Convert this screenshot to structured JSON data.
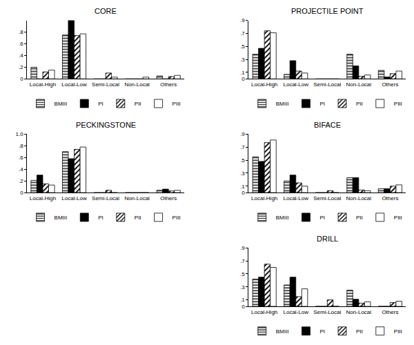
{
  "chart_data": [
    {
      "type": "bar",
      "title": "CORE",
      "categories": [
        "Local-High",
        "Local-Low",
        "Semi-Local",
        "Non-Local",
        "Others"
      ],
      "series": [
        {
          "name": "BMIII",
          "marker": "horizontal",
          "values": [
            0.2,
            0.75,
            0,
            0,
            0.05
          ]
        },
        {
          "name": "PI",
          "marker": "solid",
          "values": [
            0,
            1.0,
            0,
            0,
            0
          ]
        },
        {
          "name": "PII",
          "marker": "diagonal",
          "values": [
            0.12,
            0.74,
            0.1,
            0,
            0.04
          ]
        },
        {
          "name": "PIII",
          "marker": "hollow",
          "values": [
            0.15,
            0.77,
            0.03,
            0.03,
            0.06
          ]
        }
      ],
      "ylim": [
        0,
        1.0
      ],
      "yticks": [
        0,
        {
          "value": 0.2,
          "label": ".2"
        },
        {
          "value": 0.4,
          "label": ".4"
        },
        {
          "value": 0.6,
          "label": ".6"
        },
        {
          "value": 0.8,
          "label": ".8"
        }
      ],
      "grid": false,
      "legend": "bottom"
    },
    {
      "type": "bar",
      "title": "PROJECTILE POINT",
      "categories": [
        "Local-High",
        "Local-Low",
        "Semi-Local",
        "Non-Local",
        "Others"
      ],
      "series": [
        {
          "name": "BMIII",
          "marker": "horizontal",
          "values": [
            0.38,
            0.07,
            0,
            0.38,
            0.13
          ]
        },
        {
          "name": "PI",
          "marker": "solid",
          "values": [
            0.47,
            0.28,
            0,
            0.2,
            0.03
          ]
        },
        {
          "name": "PII",
          "marker": "diagonal",
          "values": [
            0.74,
            0.12,
            0,
            0.04,
            0.08
          ]
        },
        {
          "name": "PIII",
          "marker": "hollow",
          "values": [
            0.71,
            0.09,
            0,
            0.06,
            0.12
          ]
        }
      ],
      "ylim": [
        0,
        0.9
      ],
      "yticks": [
        0,
        {
          "value": 0.1,
          "label": ".1"
        },
        {
          "value": 0.3,
          "label": ".3"
        },
        {
          "value": 0.5,
          "label": ".5"
        },
        {
          "value": 0.7,
          "label": ".7"
        },
        {
          "value": 0.9,
          "label": ".9"
        }
      ],
      "grid": false,
      "legend": "bottom"
    },
    {
      "type": "bar",
      "title": "PECKINGSTONE",
      "categories": [
        "Local-High",
        "Local-Low",
        "Semi-Local",
        "Non-Local",
        "Others"
      ],
      "series": [
        {
          "name": "BMIII",
          "marker": "horizontal",
          "values": [
            0.21,
            0.7,
            0,
            0,
            0.04
          ]
        },
        {
          "name": "PI",
          "marker": "solid",
          "values": [
            0.3,
            0.58,
            0,
            0,
            0.06
          ]
        },
        {
          "name": "PII",
          "marker": "diagonal",
          "values": [
            0.15,
            0.74,
            0.04,
            0,
            0.03
          ]
        },
        {
          "name": "PIII",
          "marker": "hollow",
          "values": [
            0.13,
            0.78,
            0,
            0,
            0.04
          ]
        }
      ],
      "ylim": [
        0,
        1.0
      ],
      "yticks": [
        0,
        {
          "value": 0.2,
          "label": ".2"
        },
        {
          "value": 0.4,
          "label": ".4"
        },
        {
          "value": 0.6,
          "label": ".6"
        },
        {
          "value": 0.8,
          "label": ".8"
        },
        {
          "value": 1.0,
          "label": "1.0"
        }
      ],
      "grid": false,
      "legend": "bottom"
    },
    {
      "type": "bar",
      "title": "BIFACE",
      "categories": [
        "Local-High",
        "Local-Low",
        "Semi-Local",
        "Non-Local",
        "Others"
      ],
      "series": [
        {
          "name": "BMIII",
          "marker": "horizontal",
          "values": [
            0.55,
            0.18,
            0,
            0.23,
            0.06
          ]
        },
        {
          "name": "PI",
          "marker": "solid",
          "values": [
            0.48,
            0.27,
            0,
            0.23,
            0.06
          ]
        },
        {
          "name": "PII",
          "marker": "diagonal",
          "values": [
            0.77,
            0.15,
            0.03,
            0.04,
            0.1
          ]
        },
        {
          "name": "PIII",
          "marker": "hollow",
          "values": [
            0.81,
            0.1,
            0,
            0.03,
            0.12
          ]
        }
      ],
      "ylim": [
        0,
        0.9
      ],
      "yticks": [
        0,
        {
          "value": 0.1,
          "label": ".1"
        },
        {
          "value": 0.3,
          "label": ".3"
        },
        {
          "value": 0.5,
          "label": ".5"
        },
        {
          "value": 0.7,
          "label": ".7"
        },
        {
          "value": 0.9,
          "label": ".9"
        }
      ],
      "grid": false,
      "legend": "bottom"
    },
    {
      "type": "bar",
      "title": "DRILL",
      "categories": [
        "Local-High",
        "Local-Low",
        "Semi-Local",
        "Non-Local",
        "Others"
      ],
      "series": [
        {
          "name": "BMIII",
          "marker": "horizontal",
          "values": [
            0.42,
            0.33,
            0,
            0.25,
            0
          ]
        },
        {
          "name": "PI",
          "marker": "solid",
          "values": [
            0.45,
            0.45,
            0,
            0.11,
            0
          ]
        },
        {
          "name": "PII",
          "marker": "diagonal",
          "values": [
            0.65,
            0.15,
            0.1,
            0.05,
            0.06
          ]
        },
        {
          "name": "PIII",
          "marker": "hollow",
          "values": [
            0.6,
            0.27,
            0,
            0.07,
            0.08
          ]
        }
      ],
      "ylim": [
        0,
        0.9
      ],
      "yticks": [
        0,
        {
          "value": 0.1,
          "label": ".1"
        },
        {
          "value": 0.3,
          "label": ".3"
        },
        {
          "value": 0.5,
          "label": ".5"
        },
        {
          "value": 0.7,
          "label": ".7"
        },
        {
          "value": 0.9,
          "label": ".9"
        }
      ],
      "grid": false,
      "legend": "bottom"
    }
  ]
}
